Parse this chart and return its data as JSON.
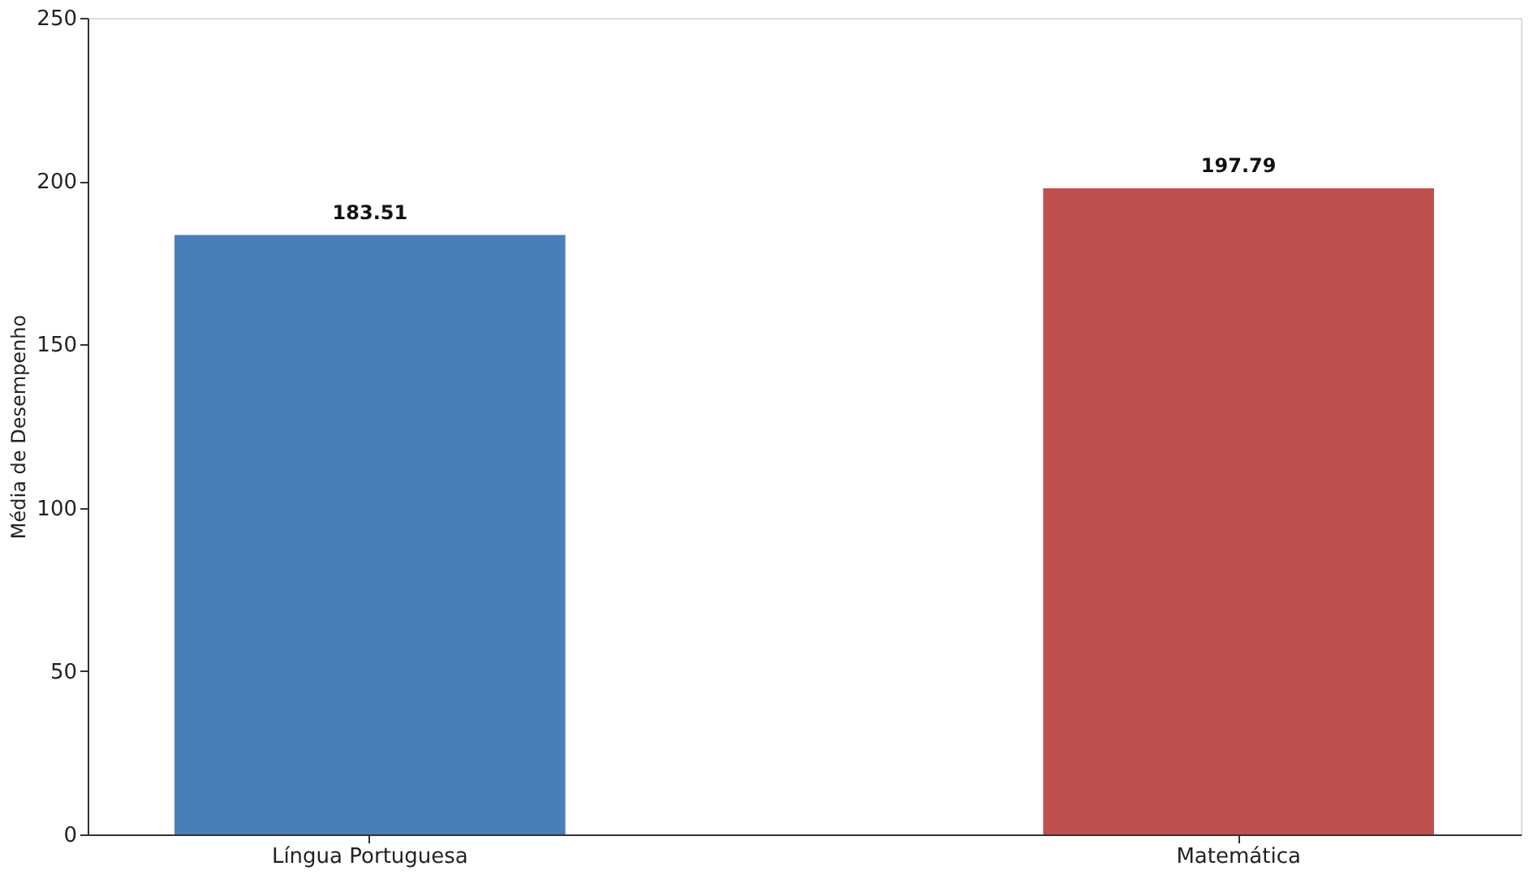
{
  "chart_data": {
    "type": "bar",
    "ylabel": "Média de Desempenho",
    "categories": [
      "Língua Portuguesa",
      "Matemática"
    ],
    "values": [
      183.51,
      197.79
    ],
    "colors": [
      "#4a7ebb",
      "#c0504d"
    ],
    "ylim": [
      0,
      250
    ],
    "yticks": [
      0,
      50,
      100,
      150,
      200,
      250
    ],
    "data_labels": true,
    "grid": false,
    "legend": false
  }
}
